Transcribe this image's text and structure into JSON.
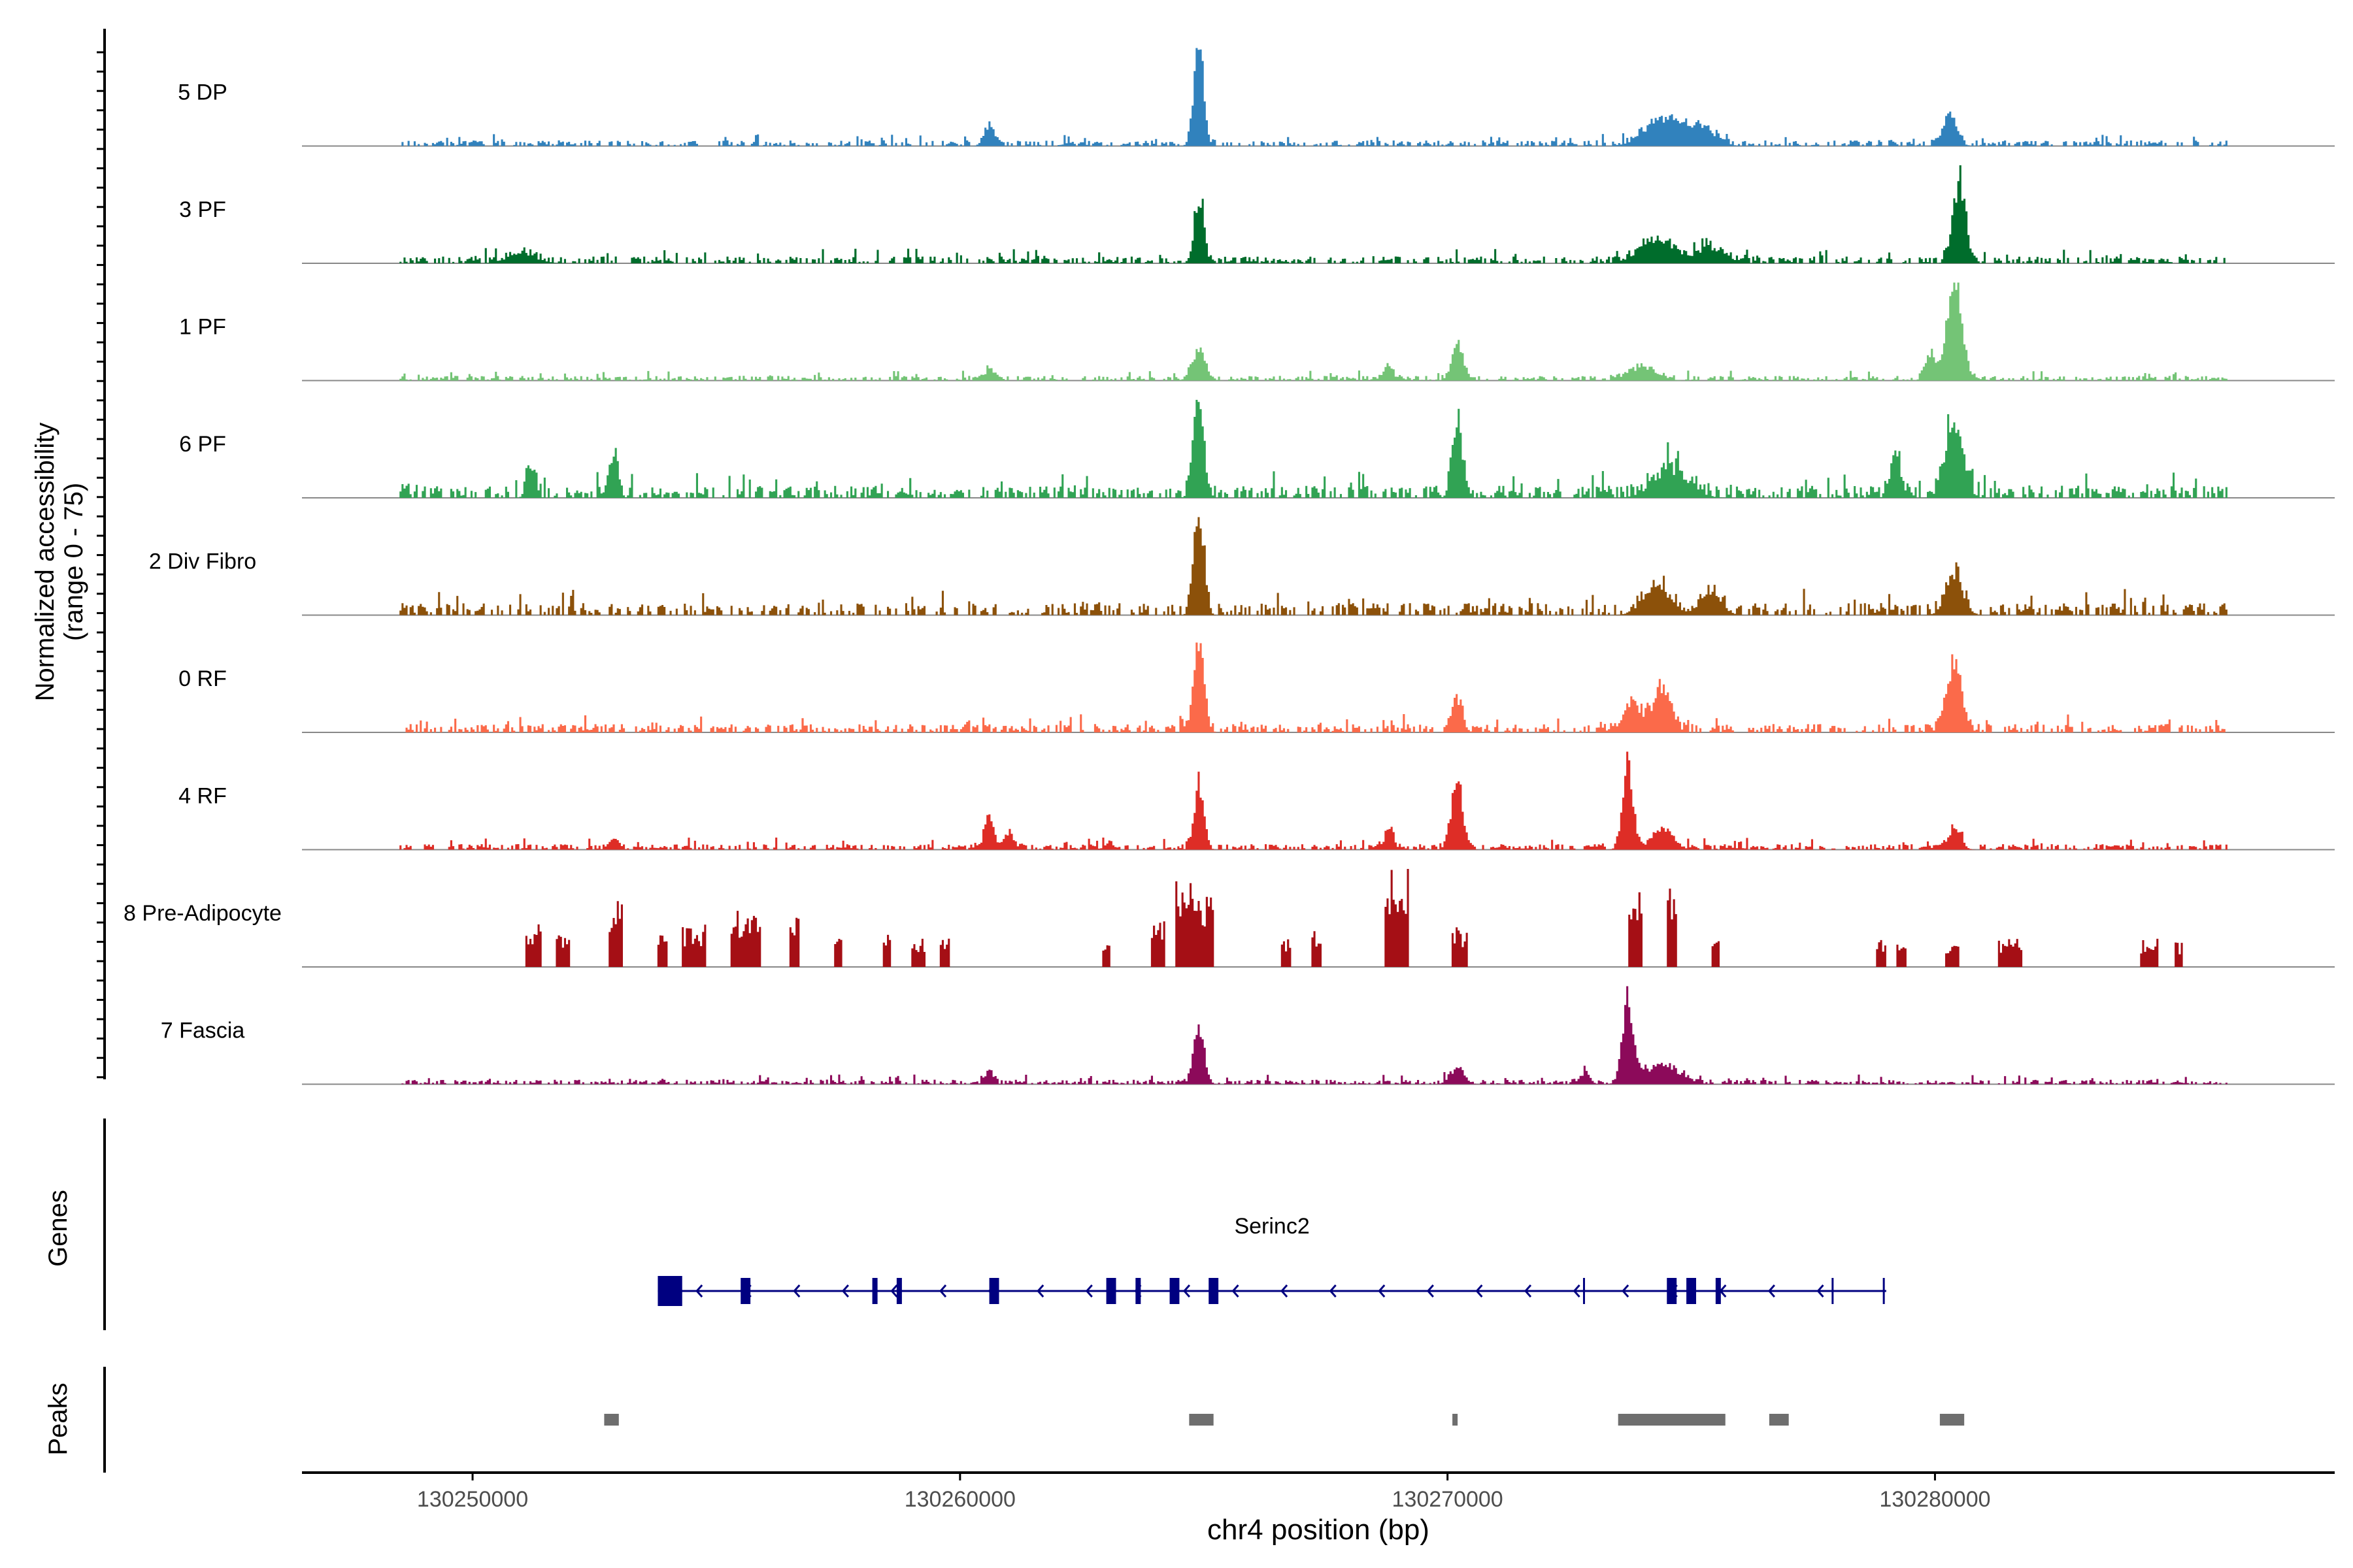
{
  "chart_data": {
    "type": "area",
    "title": "",
    "xlabel": "chr4 position (bp)",
    "ylabel_line1": "Normalized accessibility",
    "ylabel_line2": "(range 0 - 75)",
    "ylim": [
      0,
      75
    ],
    "xlim": [
      130246500,
      130288200
    ],
    "x_ticks": [
      130250000,
      130260000,
      130270000,
      130280000
    ],
    "x_tick_labels": [
      "130250000",
      "130260000",
      "130270000",
      "130280000"
    ],
    "data_range": [
      130248500,
      130286000
    ],
    "tracks": [
      {
        "name": "5 DP",
        "color": "#3182bd",
        "baseline": 2,
        "noise_density": 0.55,
        "peaks": [
          [
            130260600,
            12,
            150
          ],
          [
            130264900,
            70,
            140
          ],
          [
            130274400,
            18,
            500
          ],
          [
            130275200,
            12,
            400
          ],
          [
            130280300,
            20,
            200
          ]
        ],
        "blocks": []
      },
      {
        "name": "3 PF",
        "color": "#006d2c",
        "baseline": 3,
        "noise_density": 0.6,
        "peaks": [
          [
            130251000,
            8,
            400
          ],
          [
            130264900,
            52,
            140
          ],
          [
            130274300,
            18,
            500
          ],
          [
            130275400,
            12,
            400
          ],
          [
            130280500,
            68,
            180
          ]
        ],
        "blocks": []
      },
      {
        "name": "1 PF",
        "color": "#74c476",
        "baseline": 2,
        "noise_density": 0.55,
        "peaks": [
          [
            130260600,
            8,
            150
          ],
          [
            130264900,
            22,
            200
          ],
          [
            130268800,
            8,
            150
          ],
          [
            130270200,
            30,
            160
          ],
          [
            130274000,
            10,
            400
          ],
          [
            130279900,
            20,
            150
          ],
          [
            130280400,
            75,
            220
          ]
        ],
        "blocks": []
      },
      {
        "name": "6 PF",
        "color": "#31a354",
        "baseline": 3,
        "noise_density": 0.6,
        "peaks": [
          [
            130251200,
            16,
            120
          ],
          [
            130252900,
            22,
            120
          ],
          [
            130264900,
            43,
            150
          ],
          [
            130270200,
            36,
            140
          ],
          [
            130274600,
            12,
            500
          ],
          [
            130279200,
            20,
            150
          ],
          [
            130280400,
            32,
            250
          ]
        ],
        "blocks": []
      },
      {
        "name": "2 Div Fibro",
        "color": "#8c510a",
        "baseline": 3,
        "noise_density": 0.55,
        "peaks": [
          [
            130264900,
            48,
            140
          ],
          [
            130274300,
            12,
            400
          ],
          [
            130275400,
            10,
            300
          ],
          [
            130280400,
            18,
            250
          ]
        ],
        "blocks": []
      },
      {
        "name": "0 RF",
        "color": "#fb6a4a",
        "baseline": 2,
        "noise_density": 0.55,
        "peaks": [
          [
            130264900,
            40,
            150
          ],
          [
            130270200,
            15,
            150
          ],
          [
            130273800,
            13,
            250
          ],
          [
            130274400,
            20,
            250
          ],
          [
            130280400,
            30,
            220
          ]
        ],
        "blocks": []
      },
      {
        "name": "4 RF",
        "color": "#de2d26",
        "baseline": 3,
        "noise_density": 0.6,
        "peaks": [
          [
            130252900,
            12,
            150
          ],
          [
            130260600,
            32,
            140
          ],
          [
            130261000,
            15,
            150
          ],
          [
            130264900,
            66,
            140
          ],
          [
            130268800,
            23,
            120
          ],
          [
            130270200,
            66,
            170
          ],
          [
            130273700,
            85,
            150
          ],
          [
            130274400,
            20,
            300
          ],
          [
            130280400,
            20,
            180
          ]
        ],
        "blocks": []
      },
      {
        "name": "8 Pre-Adipocyte",
        "color": "#a50f15",
        "baseline": 0,
        "noise_density": 0,
        "peaks": [],
        "blocks": [
          [
            130251100,
            130251400,
            24
          ],
          [
            130251700,
            130252000,
            18
          ],
          [
            130252800,
            130253100,
            36
          ],
          [
            130253800,
            130254000,
            16
          ],
          [
            130254300,
            130254800,
            22
          ],
          [
            130255300,
            130255900,
            30
          ],
          [
            130256500,
            130256700,
            26
          ],
          [
            130257400,
            130257600,
            14
          ],
          [
            130258400,
            130258600,
            16
          ],
          [
            130259000,
            130259300,
            14
          ],
          [
            130259600,
            130259800,
            16
          ],
          [
            130262900,
            130263100,
            12
          ],
          [
            130263900,
            130264200,
            26
          ],
          [
            130264400,
            130265200,
            42
          ],
          [
            130266600,
            130266800,
            14
          ],
          [
            130267200,
            130267400,
            18
          ],
          [
            130268700,
            130269200,
            50
          ],
          [
            130270100,
            130270400,
            20
          ],
          [
            130273700,
            130274000,
            45
          ],
          [
            130274500,
            130274700,
            44
          ],
          [
            130275400,
            130275600,
            20
          ],
          [
            130278800,
            130279000,
            14
          ],
          [
            130279200,
            130279400,
            14
          ],
          [
            130280200,
            130280500,
            14
          ],
          [
            130281300,
            130281800,
            14
          ],
          [
            130284200,
            130284600,
            14
          ],
          [
            130284900,
            130285100,
            12
          ]
        ]
      },
      {
        "name": "7 Fascia",
        "color": "#8c0a5a",
        "baseline": 3,
        "noise_density": 0.6,
        "peaks": [
          [
            130260600,
            17,
            120
          ],
          [
            130264900,
            72,
            150
          ],
          [
            130270200,
            19,
            200
          ],
          [
            130272800,
            13,
            150
          ],
          [
            130273700,
            100,
            160
          ],
          [
            130274400,
            24,
            500
          ]
        ],
        "blocks": []
      }
    ],
    "genes_label": "Genes",
    "gene": {
      "name": "Serinc2",
      "start": 130253800,
      "end": 130279000,
      "strand": "-",
      "exons": [
        [
          130253800,
          130254300,
          "utr"
        ],
        [
          130255500,
          130255700,
          "cds"
        ],
        [
          130258200,
          130258300,
          "cds"
        ],
        [
          130258700,
          130258800,
          "cds"
        ],
        [
          130260600,
          130260800,
          "cds"
        ],
        [
          130263000,
          130263200,
          "cds"
        ],
        [
          130263600,
          130263700,
          "cds"
        ],
        [
          130264300,
          130264500,
          "cds"
        ],
        [
          130265100,
          130265300,
          "cds"
        ],
        [
          130272800,
          130272850,
          "line"
        ],
        [
          130274500,
          130274700,
          "cds"
        ],
        [
          130274900,
          130275100,
          "cds"
        ],
        [
          130275500,
          130275600,
          "cds"
        ],
        [
          130277900,
          130277950,
          "line"
        ],
        [
          130278950,
          130279000,
          "line"
        ]
      ]
    },
    "peaks_label": "Peaks",
    "peak_regions": [
      [
        130252700,
        130253000
      ],
      [
        130264700,
        130265200
      ],
      [
        130270100,
        130270200
      ],
      [
        130273500,
        130275700
      ],
      [
        130276600,
        130277000
      ],
      [
        130280100,
        130280600
      ]
    ],
    "colors": {
      "axis": "#000000",
      "track_baseline": "#888888",
      "gene": "#000080",
      "peak": "#6e6e6e",
      "tick_label": "#4d4d4d"
    }
  }
}
